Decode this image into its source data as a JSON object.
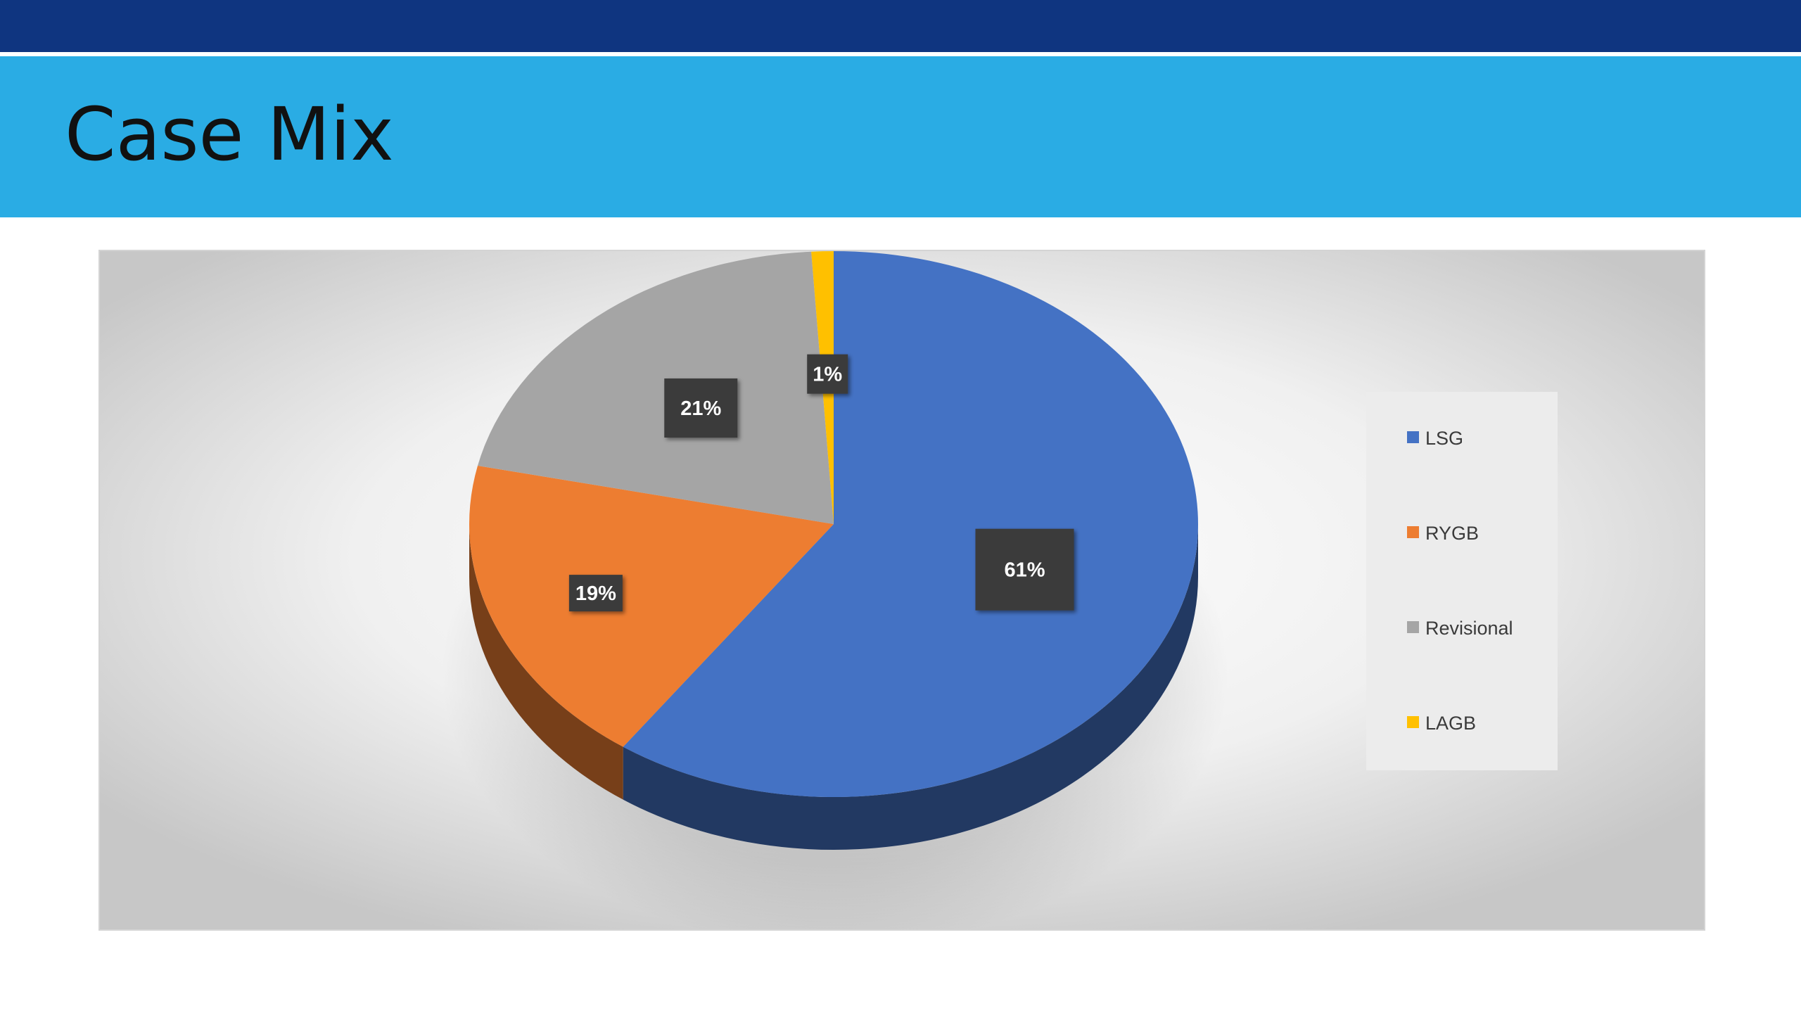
{
  "slide": {
    "title": "Case Mix"
  },
  "colors": {
    "top_bar": "#0f3580",
    "title_band": "#2aace4",
    "chart_background_center": "#ffffff",
    "chart_background_edge": "#c9c9c9",
    "data_label_background": "#3a3a3a",
    "legend_background": "#ececec"
  },
  "chart_data": {
    "type": "pie",
    "style": "3d",
    "title": "",
    "legend_placement": "right",
    "series": [
      {
        "values": [
          61,
          19,
          21,
          1
        ],
        "data_labels": [
          "61%",
          "19%",
          "21%",
          "1%"
        ]
      }
    ],
    "categories": [
      "LSG",
      "RYGB",
      "Revisional",
      "LAGB"
    ],
    "colors": [
      "#4472c4",
      "#ed7d31",
      "#a5a5a5",
      "#ffc000"
    ]
  }
}
